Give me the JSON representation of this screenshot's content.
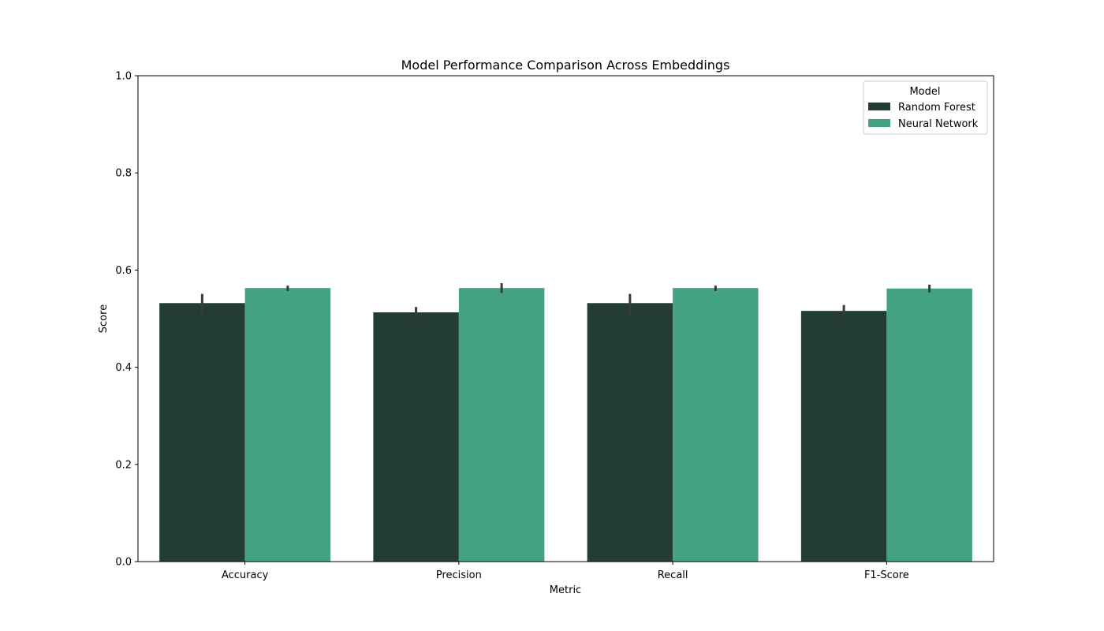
{
  "chart_data": {
    "type": "bar",
    "title": "Model Performance Comparison Across Embeddings",
    "xlabel": "Metric",
    "ylabel": "Score",
    "ylim": [
      0,
      1
    ],
    "yticks": [
      "0.0",
      "0.2",
      "0.4",
      "0.6",
      "0.8",
      "1.0"
    ],
    "categories": [
      "Accuracy",
      "Precision",
      "Recall",
      "F1-Score"
    ],
    "series": [
      {
        "name": "Random Forest",
        "color": "#233d35",
        "values": [
          0.532,
          0.513,
          0.532,
          0.516
        ],
        "err_low": [
          0.51,
          0.502,
          0.51,
          0.503
        ],
        "err_high": [
          0.551,
          0.524,
          0.551,
          0.528
        ]
      },
      {
        "name": "Neural Network",
        "color": "#43a184",
        "values": [
          0.563,
          0.563,
          0.563,
          0.562
        ],
        "err_low": [
          0.557,
          0.553,
          0.557,
          0.554
        ],
        "err_high": [
          0.568,
          0.573,
          0.568,
          0.57
        ]
      }
    ],
    "error_bar_color": "#3a3a3a",
    "legend": {
      "title": "Model",
      "placement": "top-right"
    },
    "grid": false
  }
}
